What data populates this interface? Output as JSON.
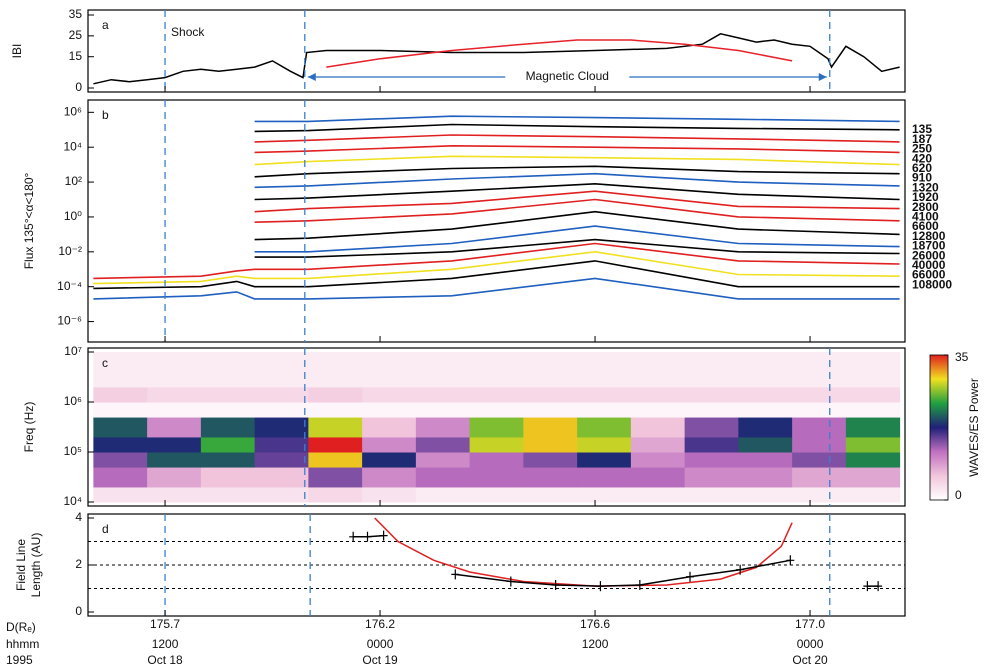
{
  "chart_data": [
    {
      "type": "line",
      "label": "a",
      "ylabel": "IBI",
      "xlim": [
        7.7,
        53.3
      ],
      "ylim": [
        0,
        35
      ],
      "yticks": [
        0,
        15,
        25,
        35
      ],
      "vlines": [
        12,
        19.8,
        49.1
      ],
      "annotations": [
        "Shock",
        "Magnetic Cloud"
      ],
      "series": [
        {
          "color": "#000000",
          "x": [
            8,
            9,
            10,
            11,
            12,
            13,
            14,
            15,
            16,
            17,
            18,
            19,
            19.7,
            19.9,
            21,
            24,
            28,
            32,
            36,
            40,
            42,
            43,
            44,
            45,
            46,
            47,
            48,
            49,
            49.2,
            50,
            51,
            52,
            53
          ],
          "values": [
            2,
            4,
            3,
            4,
            5,
            8,
            9,
            8,
            9,
            10,
            13,
            8,
            5,
            17,
            18,
            18,
            17,
            17,
            18,
            19,
            21,
            26,
            24,
            22,
            23,
            21,
            20,
            14,
            10,
            20,
            15,
            8,
            10
          ]
        },
        {
          "color": "#e8202a",
          "x": [
            21,
            24,
            28,
            32,
            35,
            38,
            41,
            44,
            47
          ],
          "values": [
            10,
            14,
            18,
            21,
            23,
            23,
            21,
            18,
            13
          ]
        }
      ]
    },
    {
      "type": "line",
      "label": "b",
      "ylabel": "Flux 135°<α<180°",
      "log": true,
      "xlim": [
        7.7,
        53.3
      ],
      "ylim": [
        1e-07,
        3000000.0
      ],
      "yticks": [
        {
          "value": 1000000.0,
          "label": "10⁶"
        },
        {
          "value": 10000.0,
          "label": "10⁴"
        },
        {
          "value": 100,
          "label": "10²"
        },
        {
          "value": 1,
          "label": "10⁰"
        },
        {
          "value": 0.01,
          "label": "10⁻²"
        },
        {
          "value": 0.0001,
          "label": "10⁻⁴"
        },
        {
          "value": 1e-06,
          "label": "10⁻⁶"
        }
      ],
      "vlines": [
        12,
        19.8
      ],
      "x": [
        8,
        14,
        16,
        17,
        20,
        28,
        36,
        44,
        53
      ],
      "series": [
        {
          "name": "135",
          "color": "#1f5fbf",
          "values": [
            null,
            null,
            null,
            300000.0,
            300000.0,
            600000.0,
            500000.0,
            400000.0,
            300000.0
          ]
        },
        {
          "name": "187",
          "color": "#000000",
          "values": [
            null,
            null,
            null,
            80000.0,
            90000.0,
            200000.0,
            150000.0,
            120000.0,
            100000.0
          ]
        },
        {
          "name": "250",
          "color": "#e02020",
          "values": [
            null,
            null,
            null,
            20000.0,
            25000.0,
            50000.0,
            40000.0,
            30000.0,
            20000.0
          ]
        },
        {
          "name": "420",
          "color": "#e02020",
          "values": [
            null,
            null,
            null,
            5000.0,
            6000.0,
            12000.0,
            10000.0,
            8000.0,
            5000.0
          ]
        },
        {
          "name": "620",
          "color": "#f0e020",
          "values": [
            null,
            null,
            null,
            1000.0,
            1500.0,
            3000.0,
            2500.0,
            2000.0,
            1000.0
          ]
        },
        {
          "name": "910",
          "color": "#000000",
          "values": [
            null,
            null,
            null,
            200,
            300,
            600,
            800,
            400,
            300
          ]
        },
        {
          "name": "1320",
          "color": "#1f5fbf",
          "values": [
            null,
            null,
            null,
            50,
            60,
            150,
            300,
            100,
            60
          ]
        },
        {
          "name": "1920",
          "color": "#000000",
          "values": [
            null,
            null,
            null,
            10,
            12,
            30,
            80,
            20,
            10
          ]
        },
        {
          "name": "2800",
          "color": "#e02020",
          "values": [
            null,
            null,
            null,
            2,
            3,
            6,
            30,
            4,
            3
          ]
        },
        {
          "name": "4100",
          "color": "#e02020",
          "values": [
            null,
            null,
            null,
            0.5,
            0.6,
            1.5,
            10,
            1,
            0.6
          ]
        },
        {
          "name": "6600",
          "color": "#000000",
          "values": [
            null,
            null,
            null,
            0.05,
            0.06,
            0.2,
            2,
            0.2,
            0.1
          ]
        },
        {
          "name": "12800",
          "color": "#1f5fbf",
          "values": [
            null,
            null,
            null,
            0.01,
            0.01,
            0.03,
            0.3,
            0.03,
            0.02
          ]
        },
        {
          "name": "18700",
          "color": "#000000",
          "values": [
            null,
            null,
            null,
            0.005,
            0.005,
            0.01,
            0.05,
            0.01,
            0.008
          ]
        },
        {
          "name": "26000",
          "color": "#e02020",
          "values": [
            0.0003,
            0.0004,
            0.0008,
            0.001,
            0.001,
            0.003,
            0.03,
            0.003,
            0.002
          ]
        },
        {
          "name": "40000",
          "color": "#f0e020",
          "values": [
            0.00015,
            0.0002,
            0.0004,
            0.0003,
            0.0003,
            0.001,
            0.01,
            0.0005,
            0.0004
          ]
        },
        {
          "name": "66000",
          "color": "#000000",
          "values": [
            8e-05,
            0.0001,
            0.0002,
            0.0001,
            0.0001,
            0.0003,
            0.003,
            0.0001,
            0.0001
          ]
        },
        {
          "name": "108000",
          "color": "#1f5fbf",
          "values": [
            2e-05,
            3e-05,
            5e-05,
            2e-05,
            2e-05,
            3e-05,
            0.0003,
            2e-05,
            2e-05
          ]
        }
      ]
    },
    {
      "type": "heatmap",
      "label": "c",
      "ylabel": "Freq (Hz)",
      "log": true,
      "xlim": [
        7.7,
        53.3
      ],
      "ylim": [
        10000.0,
        10000000.0
      ],
      "yticks": [
        {
          "value": 10000.0,
          "label": "10⁴"
        },
        {
          "value": 100000.0,
          "label": "10⁵"
        },
        {
          "value": 1000000.0,
          "label": "10⁶"
        },
        {
          "value": 10000000.0,
          "label": "10⁷"
        }
      ],
      "vlines": [
        19.8,
        49.1
      ],
      "x_edges": [
        8,
        11,
        14,
        17,
        20,
        23,
        26,
        29,
        32,
        35,
        38,
        41,
        44,
        47,
        50,
        53
      ],
      "y_edges": [
        10000.0,
        20000.0,
        50000.0,
        100000.0,
        200000.0,
        500000.0,
        1000000.0,
        2000000.0,
        10000000.0
      ],
      "values": [
        [
          3,
          3,
          3,
          3,
          4,
          3,
          2,
          2,
          2,
          2,
          2,
          2,
          2,
          2,
          2
        ],
        [
          12,
          8,
          6,
          6,
          14,
          10,
          12,
          12,
          12,
          12,
          12,
          10,
          10,
          8,
          8
        ],
        [
          14,
          20,
          20,
          15,
          30,
          18,
          10,
          12,
          14,
          18,
          10,
          12,
          12,
          14,
          22
        ],
        [
          18,
          18,
          24,
          16,
          35,
          10,
          14,
          28,
          30,
          28,
          8,
          16,
          20,
          12,
          26
        ],
        [
          20,
          10,
          20,
          18,
          28,
          6,
          10,
          26,
          30,
          26,
          6,
          14,
          18,
          12,
          22
        ],
        [
          1,
          1,
          1,
          1,
          1,
          1,
          1,
          1,
          1,
          1,
          1,
          1,
          1,
          1,
          1
        ],
        [
          5,
          4,
          4,
          4,
          5,
          4,
          4,
          4,
          4,
          4,
          4,
          4,
          4,
          4,
          4
        ],
        [
          2,
          2,
          2,
          2,
          2,
          2,
          2,
          2,
          2,
          2,
          2,
          2,
          2,
          2,
          2
        ]
      ],
      "colorbar": {
        "label": "WAVES/ES Power",
        "zlim": [
          0,
          35
        ],
        "zticks": [
          0,
          35
        ],
        "colors": [
          "#ffffff",
          "#f2c6dc",
          "#c070c0",
          "#20207a",
          "#20a040",
          "#f0e020",
          "#e02020"
        ]
      }
    },
    {
      "type": "scatter",
      "label": "d",
      "ylabel": [
        "Field Line",
        "Length (AU)"
      ],
      "xlim": [
        7.7,
        53.3
      ],
      "ylim": [
        0,
        4
      ],
      "yticks": [
        0,
        2,
        4
      ],
      "hlines": [
        1,
        2,
        3
      ],
      "vlines": [
        12,
        20.1,
        49.1
      ],
      "xticks": [
        {
          "value": 12,
          "label": "175.7"
        },
        {
          "value": 24,
          "label": "176.2"
        },
        {
          "value": 36,
          "label": "176.6"
        },
        {
          "value": 48,
          "label": "177.0"
        }
      ],
      "xlabel": "D(Rₑ)",
      "xtick_rows": [
        {
          "name": "hhmm",
          "labels": [
            "1200",
            "0000",
            "1200",
            "0000"
          ]
        },
        {
          "name": "1995",
          "labels": [
            "Oct 18",
            "Oct 19",
            null,
            "Oct 20"
          ]
        }
      ],
      "series": [
        {
          "color": "#e02020",
          "markers": false,
          "x": [
            23.7,
            25,
            27,
            29,
            32,
            36,
            40,
            43,
            45,
            46.4,
            47
          ],
          "values": [
            4,
            3,
            2.2,
            1.7,
            1.3,
            1.1,
            1.15,
            1.4,
            1.9,
            2.8,
            3.8
          ]
        },
        {
          "color": "#000000",
          "markers": true,
          "x": [
            22.5,
            23.3,
            24.2,
            26,
            28.2,
            31.3,
            33.8,
            36.3,
            38.5,
            41.3,
            44.1,
            46.9,
            49,
            51.2,
            51.8
          ],
          "values": [
            3.2,
            3.2,
            3.25,
            null,
            1.6,
            1.3,
            1.15,
            1.1,
            1.15,
            1.5,
            1.8,
            2.2,
            null,
            1.1,
            1.1
          ]
        }
      ]
    }
  ]
}
